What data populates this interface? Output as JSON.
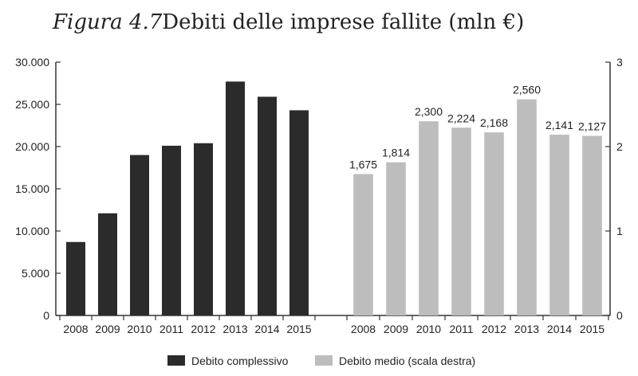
{
  "header": {
    "figure_label": "Figura 4.7",
    "title": "Debiti delle imprese fallite (mln €)"
  },
  "chart_data": [
    {
      "type": "bar",
      "categories": [
        "2008",
        "2009",
        "2010",
        "2011",
        "2012",
        "2013",
        "2014",
        "2015"
      ],
      "series": [
        {
          "name": "Debito complessivo",
          "values": [
            8700,
            12100,
            19000,
            20100,
            20400,
            27700,
            25900,
            24300
          ],
          "color": "#2b2b2b"
        }
      ],
      "ylim": [
        0,
        30000
      ],
      "yticks": [
        "0",
        "5.000",
        "10.000",
        "15.000",
        "20.000",
        "25.000",
        "30.000"
      ],
      "axis_side": "left",
      "grid": false
    },
    {
      "type": "bar",
      "categories": [
        "2008",
        "2009",
        "2010",
        "2011",
        "2012",
        "2013",
        "2014",
        "2015"
      ],
      "series": [
        {
          "name": "Debito medio (scala destra)",
          "values": [
            1.675,
            1.814,
            2.3,
            2.224,
            2.168,
            2.56,
            2.141,
            2.127
          ],
          "color": "#bdbdbd"
        }
      ],
      "data_labels": [
        "1,675",
        "1,814",
        "2,300",
        "2,224",
        "2,168",
        "2,560",
        "2,141",
        "2,127"
      ],
      "ylim": [
        0,
        3
      ],
      "yticks": [
        "0",
        "1",
        "2",
        "3"
      ],
      "axis_side": "right",
      "grid": false
    }
  ],
  "legend": {
    "placement": "bottom",
    "items": [
      {
        "label": "Debito complessivo",
        "color": "#2b2b2b"
      },
      {
        "label": "Debito medio (scala destra)",
        "color": "#bdbdbd"
      }
    ]
  }
}
